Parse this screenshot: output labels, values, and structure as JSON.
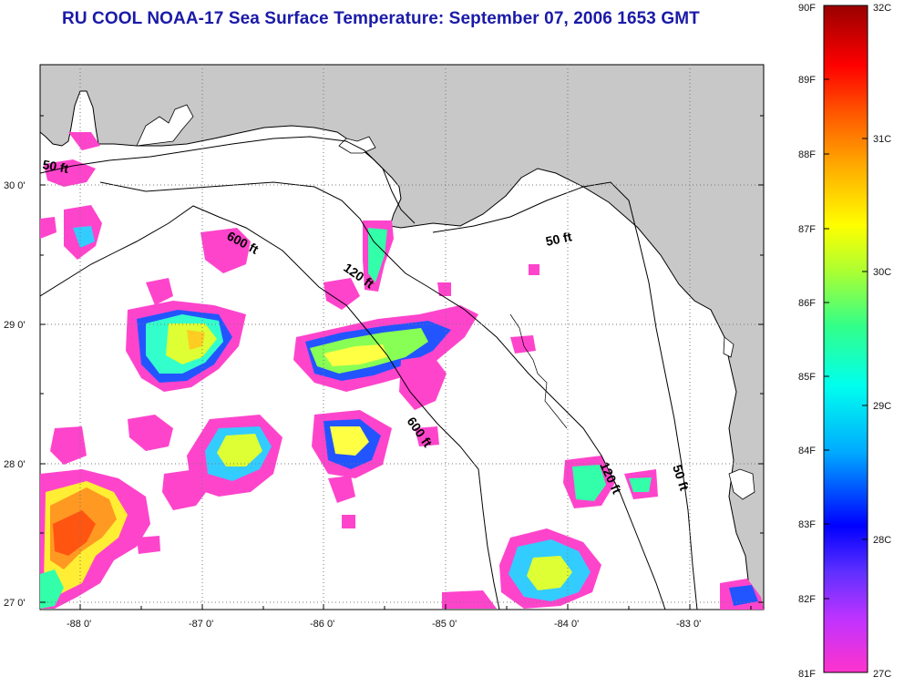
{
  "title": "RU COOL  NOAA-17  Sea Surface Temperature:  September 07, 2006 1653 GMT",
  "map": {
    "lon_labels": [
      "-88 0'",
      "-87 0'",
      "-86 0'",
      "-85 0'",
      "-84 0'",
      "-83 0'"
    ],
    "lat_labels": [
      "30 0'",
      "29 0'",
      "28 0'",
      "27 0'"
    ],
    "contours": [
      {
        "label": "50 ft",
        "depth_ft": 50
      },
      {
        "label": "600 ft",
        "depth_ft": 600
      },
      {
        "label": "120 ft",
        "depth_ft": 120
      },
      {
        "label": "50 ft",
        "depth_ft": 50
      },
      {
        "label": "600 ft",
        "depth_ft": 600
      },
      {
        "label": "120 ft",
        "depth_ft": 120
      },
      {
        "label": "50 ft",
        "depth_ft": 50
      }
    ]
  },
  "colorbar": {
    "fahrenheit_labels": [
      "90F",
      "89F",
      "88F",
      "87F",
      "86F",
      "85F",
      "84F",
      "83F",
      "82F",
      "81F"
    ],
    "celsius_labels": [
      "32C",
      "31C",
      "30C",
      "29C",
      "28C",
      "27C"
    ],
    "range_f": [
      81,
      90
    ],
    "range_c": [
      27,
      32
    ]
  },
  "colors": {
    "land": "#c8c8c8",
    "ocean": "#ffffff",
    "title": "#1a1aa8"
  }
}
